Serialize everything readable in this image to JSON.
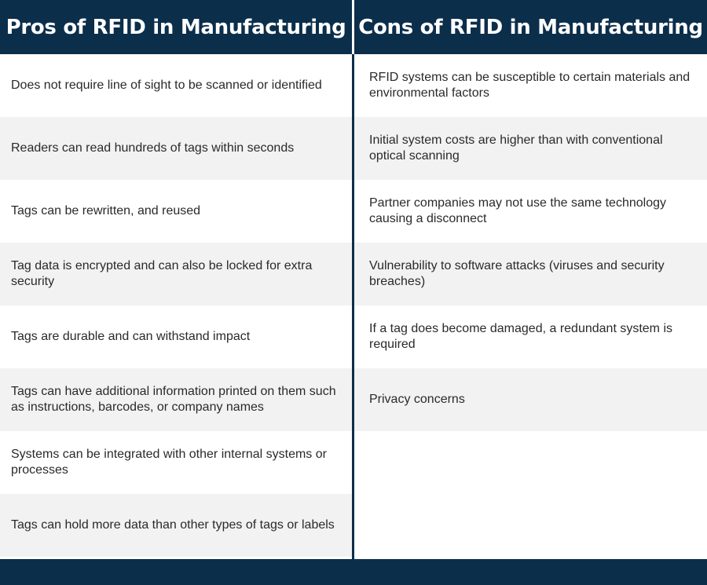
{
  "header": {
    "pros_title": "Pros of RFID in Manufacturing",
    "cons_title": "Cons of RFID in Manufacturing"
  },
  "pros": [
    "Does not require line of sight to be scanned or identified",
    "Readers can read hundreds of tags within seconds",
    "Tags can be rewritten, and reused",
    "Tag data is encrypted and can also be locked for extra security",
    "Tags are durable and can withstand impact",
    "Tags can have additional information printed on them such as instructions, barcodes, or company names",
    "Systems can be integrated with other internal systems or processes",
    "Tags can hold more data than other types of tags or labels"
  ],
  "cons": [
    "RFID systems can be susceptible to certain materials and environmental factors",
    "Initial system costs are higher than with conventional optical scanning",
    "Partner companies may not use the same technology causing a disconnect",
    "Vulnerability to software attacks (viruses and security breaches)",
    "If a tag does become damaged, a redundant system is required",
    "Privacy concerns"
  ],
  "colors": {
    "navy": "#0b2e4b",
    "row_shade": "#f2f2f2",
    "text": "#2a2a2a"
  }
}
